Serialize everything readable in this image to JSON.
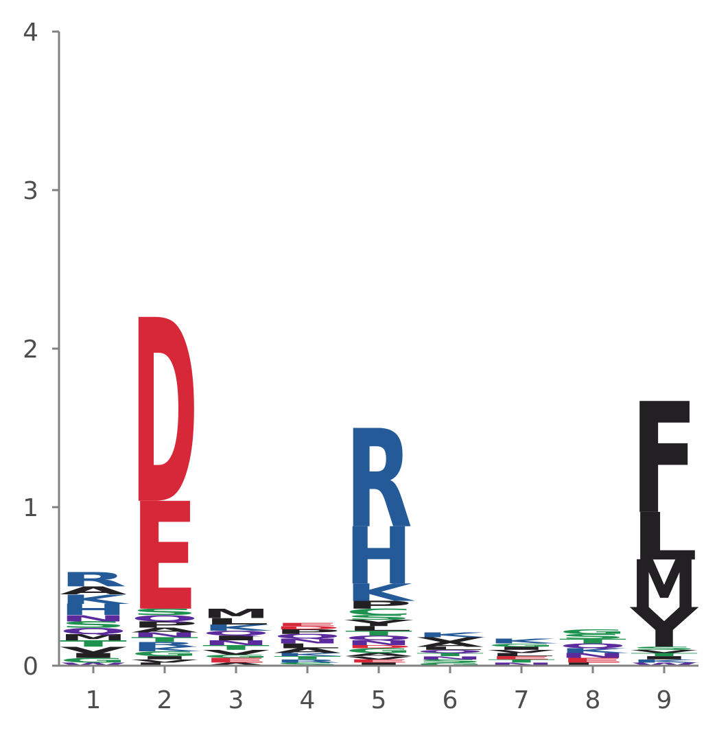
{
  "colors": {
    "acidic": "#d7283a",
    "basic": "#255a99",
    "hydrophobic": "#222022",
    "polar": "#1f9250",
    "neutral": "#5b2a9c",
    "axis": "#808080",
    "text": "#4d4d4d"
  },
  "chart_data": {
    "type": "sequence-logo",
    "title": "",
    "xlabel": "",
    "ylabel": "",
    "ylim": [
      0,
      4
    ],
    "yticks": [
      "0",
      "1",
      "2",
      "3",
      "4"
    ],
    "x_categories": [
      "1",
      "2",
      "3",
      "4",
      "5",
      "6",
      "7",
      "8",
      "9"
    ],
    "positions": [
      {
        "position": "1",
        "letters": [
          {
            "letter": "W",
            "bits": 0.02,
            "color": "neutral"
          },
          {
            "letter": "G",
            "bits": 0.03,
            "color": "polar"
          },
          {
            "letter": "I",
            "bits": 0.03,
            "color": "hydrophobic"
          },
          {
            "letter": "V",
            "bits": 0.04,
            "color": "hydrophobic"
          },
          {
            "letter": "T",
            "bits": 0.04,
            "color": "polar"
          },
          {
            "letter": "M",
            "bits": 0.04,
            "color": "hydrophobic"
          },
          {
            "letter": "Q",
            "bits": 0.04,
            "color": "neutral"
          },
          {
            "letter": "S",
            "bits": 0.04,
            "color": "polar"
          },
          {
            "letter": "N",
            "bits": 0.04,
            "color": "neutral"
          },
          {
            "letter": "H",
            "bits": 0.07,
            "color": "basic"
          },
          {
            "letter": "K",
            "bits": 0.06,
            "color": "basic"
          },
          {
            "letter": "A",
            "bits": 0.05,
            "color": "hydrophobic"
          },
          {
            "letter": "R",
            "bits": 0.09,
            "color": "basic"
          }
        ]
      },
      {
        "position": "2",
        "letters": [
          {
            "letter": "L",
            "bits": 0.02,
            "color": "hydrophobic"
          },
          {
            "letter": "V",
            "bits": 0.02,
            "color": "hydrophobic"
          },
          {
            "letter": "I",
            "bits": 0.02,
            "color": "hydrophobic"
          },
          {
            "letter": "G",
            "bits": 0.03,
            "color": "polar"
          },
          {
            "letter": "K",
            "bits": 0.03,
            "color": "basic"
          },
          {
            "letter": "R",
            "bits": 0.03,
            "color": "basic"
          },
          {
            "letter": "T",
            "bits": 0.03,
            "color": "polar"
          },
          {
            "letter": "N",
            "bits": 0.03,
            "color": "neutral"
          },
          {
            "letter": "A",
            "bits": 0.03,
            "color": "hydrophobic"
          },
          {
            "letter": "P",
            "bits": 0.04,
            "color": "hydrophobic"
          },
          {
            "letter": "Q",
            "bits": 0.04,
            "color": "neutral"
          },
          {
            "letter": "S",
            "bits": 0.04,
            "color": "polar"
          },
          {
            "letter": "E",
            "bits": 0.68,
            "color": "acidic"
          },
          {
            "letter": "D",
            "bits": 1.16,
            "color": "acidic"
          }
        ]
      },
      {
        "position": "3",
        "letters": [
          {
            "letter": "A",
            "bits": 0.02,
            "color": "hydrophobic"
          },
          {
            "letter": "E",
            "bits": 0.03,
            "color": "acidic"
          },
          {
            "letter": "G",
            "bits": 0.02,
            "color": "polar"
          },
          {
            "letter": "V",
            "bits": 0.03,
            "color": "hydrophobic"
          },
          {
            "letter": "T",
            "bits": 0.03,
            "color": "polar"
          },
          {
            "letter": "N",
            "bits": 0.03,
            "color": "neutral"
          },
          {
            "letter": "I",
            "bits": 0.03,
            "color": "hydrophobic"
          },
          {
            "letter": "Q",
            "bits": 0.03,
            "color": "neutral"
          },
          {
            "letter": "K",
            "bits": 0.04,
            "color": "basic"
          },
          {
            "letter": "L",
            "bits": 0.04,
            "color": "hydrophobic"
          },
          {
            "letter": "M",
            "bits": 0.06,
            "color": "hydrophobic"
          }
        ]
      },
      {
        "position": "4",
        "letters": [
          {
            "letter": "S",
            "bits": 0.02,
            "color": "polar"
          },
          {
            "letter": "R",
            "bits": 0.02,
            "color": "basic"
          },
          {
            "letter": "T",
            "bits": 0.02,
            "color": "polar"
          },
          {
            "letter": "K",
            "bits": 0.02,
            "color": "basic"
          },
          {
            "letter": "A",
            "bits": 0.03,
            "color": "hydrophobic"
          },
          {
            "letter": "L",
            "bits": 0.03,
            "color": "hydrophobic"
          },
          {
            "letter": "N",
            "bits": 0.03,
            "color": "neutral"
          },
          {
            "letter": "Q",
            "bits": 0.03,
            "color": "neutral"
          },
          {
            "letter": "P",
            "bits": 0.03,
            "color": "hydrophobic"
          },
          {
            "letter": "D",
            "bits": 0.02,
            "color": "acidic"
          },
          {
            "letter": "E",
            "bits": 0.02,
            "color": "acidic"
          }
        ]
      },
      {
        "position": "5",
        "letters": [
          {
            "letter": "I",
            "bits": 0.02,
            "color": "hydrophobic"
          },
          {
            "letter": "E",
            "bits": 0.02,
            "color": "acidic"
          },
          {
            "letter": "V",
            "bits": 0.02,
            "color": "hydrophobic"
          },
          {
            "letter": "A",
            "bits": 0.02,
            "color": "hydrophobic"
          },
          {
            "letter": "G",
            "bits": 0.03,
            "color": "polar"
          },
          {
            "letter": "D",
            "bits": 0.02,
            "color": "acidic"
          },
          {
            "letter": "N",
            "bits": 0.03,
            "color": "neutral"
          },
          {
            "letter": "Q",
            "bits": 0.03,
            "color": "neutral"
          },
          {
            "letter": "T",
            "bits": 0.03,
            "color": "polar"
          },
          {
            "letter": "L",
            "bits": 0.03,
            "color": "hydrophobic"
          },
          {
            "letter": "Y",
            "bits": 0.04,
            "color": "hydrophobic"
          },
          {
            "letter": "S",
            "bits": 0.03,
            "color": "polar"
          },
          {
            "letter": "C",
            "bits": 0.04,
            "color": "polar"
          },
          {
            "letter": "P",
            "bits": 0.05,
            "color": "hydrophobic"
          },
          {
            "letter": "K",
            "bits": 0.11,
            "color": "basic"
          },
          {
            "letter": "H",
            "bits": 0.36,
            "color": "basic"
          },
          {
            "letter": "R",
            "bits": 0.62,
            "color": "basic"
          }
        ]
      },
      {
        "position": "6",
        "letters": [
          {
            "letter": "G",
            "bits": 0.02,
            "color": "polar"
          },
          {
            "letter": "S",
            "bits": 0.02,
            "color": "polar"
          },
          {
            "letter": "N",
            "bits": 0.02,
            "color": "neutral"
          },
          {
            "letter": "T",
            "bits": 0.02,
            "color": "polar"
          },
          {
            "letter": "Q",
            "bits": 0.02,
            "color": "neutral"
          },
          {
            "letter": "L",
            "bits": 0.02,
            "color": "hydrophobic"
          },
          {
            "letter": "A",
            "bits": 0.03,
            "color": "hydrophobic"
          },
          {
            "letter": "V",
            "bits": 0.03,
            "color": "hydrophobic"
          },
          {
            "letter": "K",
            "bits": 0.03,
            "color": "basic"
          }
        ]
      },
      {
        "position": "7",
        "letters": [
          {
            "letter": "N",
            "bits": 0.02,
            "color": "neutral"
          },
          {
            "letter": "T",
            "bits": 0.02,
            "color": "polar"
          },
          {
            "letter": "E",
            "bits": 0.02,
            "color": "acidic"
          },
          {
            "letter": "L",
            "bits": 0.02,
            "color": "hydrophobic"
          },
          {
            "letter": "V",
            "bits": 0.02,
            "color": "hydrophobic"
          },
          {
            "letter": "I",
            "bits": 0.02,
            "color": "hydrophobic"
          },
          {
            "letter": "G",
            "bits": 0.02,
            "color": "polar"
          },
          {
            "letter": "K",
            "bits": 0.03,
            "color": "basic"
          }
        ]
      },
      {
        "position": "8",
        "letters": [
          {
            "letter": "L",
            "bits": 0.02,
            "color": "hydrophobic"
          },
          {
            "letter": "E",
            "bits": 0.03,
            "color": "acidic"
          },
          {
            "letter": "N",
            "bits": 0.03,
            "color": "neutral"
          },
          {
            "letter": "K",
            "bits": 0.03,
            "color": "basic"
          },
          {
            "letter": "Q",
            "bits": 0.03,
            "color": "neutral"
          },
          {
            "letter": "T",
            "bits": 0.03,
            "color": "polar"
          },
          {
            "letter": "S",
            "bits": 0.03,
            "color": "polar"
          },
          {
            "letter": "G",
            "bits": 0.03,
            "color": "polar"
          }
        ]
      },
      {
        "position": "9",
        "letters": [
          {
            "letter": "W",
            "bits": 0.02,
            "color": "neutral"
          },
          {
            "letter": "K",
            "bits": 0.02,
            "color": "basic"
          },
          {
            "letter": "I",
            "bits": 0.02,
            "color": "hydrophobic"
          },
          {
            "letter": "T",
            "bits": 0.02,
            "color": "polar"
          },
          {
            "letter": "V",
            "bits": 0.02,
            "color": "hydrophobic"
          },
          {
            "letter": "S",
            "bits": 0.02,
            "color": "polar"
          },
          {
            "letter": "Y",
            "bits": 0.25,
            "color": "hydrophobic"
          },
          {
            "letter": "M",
            "bits": 0.3,
            "color": "hydrophobic"
          },
          {
            "letter": "L",
            "bits": 0.3,
            "color": "hydrophobic"
          },
          {
            "letter": "F",
            "bits": 0.7,
            "color": "hydrophobic"
          }
        ]
      }
    ]
  }
}
